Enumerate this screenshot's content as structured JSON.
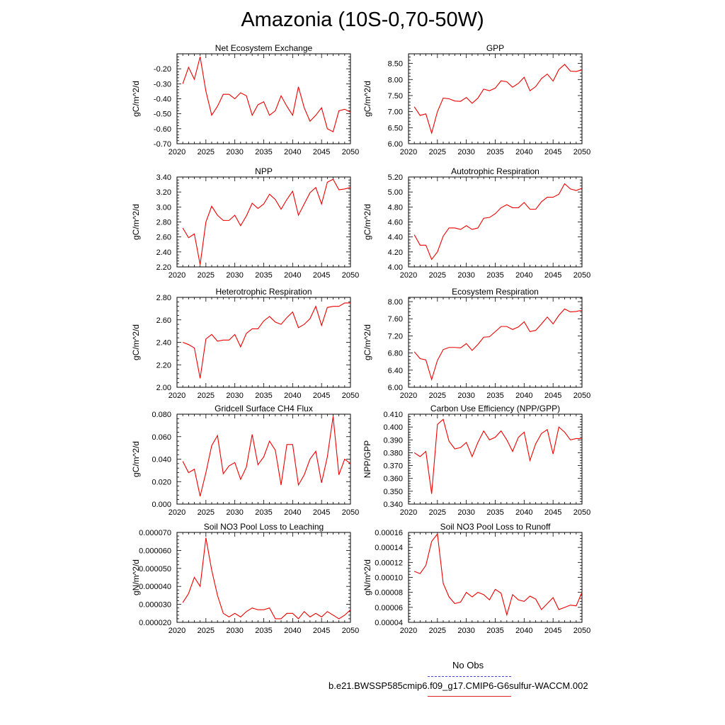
{
  "page_title": "Amazonia (10S-0,70-50W)",
  "legend": {
    "entries": [
      {
        "label": "No Obs",
        "color": "#4444dd",
        "style": "dashed"
      },
      {
        "label": "b.e21.BWSSP585cmip6.f09_g17.CMIP6-G6sulfur-WACCM.002",
        "color": "#dd2222",
        "style": "solid"
      }
    ]
  },
  "chart_data": [
    {
      "type": "line",
      "title": "Net Ecosystem Exchange",
      "ylabel": "gC/m^2/d",
      "xlim": [
        2020,
        2050
      ],
      "ylim": [
        -0.7,
        -0.1
      ],
      "xticks": [
        "2020",
        "2025",
        "2030",
        "2035",
        "2040",
        "2045",
        "2050"
      ],
      "yticks": [
        "-0.70",
        "-0.60",
        "-0.50",
        "-0.40",
        "-0.30",
        "-0.20"
      ],
      "ytick_values": [
        -0.7,
        -0.6,
        -0.5,
        -0.4,
        -0.3,
        -0.2
      ],
      "x": [
        2021,
        2022,
        2023,
        2024,
        2025,
        2026,
        2027,
        2028,
        2029,
        2030,
        2031,
        2032,
        2033,
        2034,
        2035,
        2036,
        2037,
        2038,
        2039,
        2040,
        2041,
        2042,
        2043,
        2044,
        2045,
        2046,
        2047,
        2048,
        2049,
        2050
      ],
      "series": [
        {
          "color": "#ee0000",
          "values": [
            -0.3,
            -0.19,
            -0.27,
            -0.12,
            -0.35,
            -0.51,
            -0.45,
            -0.37,
            -0.37,
            -0.4,
            -0.36,
            -0.38,
            -0.51,
            -0.44,
            -0.42,
            -0.51,
            -0.48,
            -0.38,
            -0.45,
            -0.51,
            -0.32,
            -0.46,
            -0.55,
            -0.51,
            -0.46,
            -0.6,
            -0.62,
            -0.48,
            -0.47,
            -0.49
          ]
        }
      ]
    },
    {
      "type": "line",
      "title": "GPP",
      "ylabel": "gC/m^2/d",
      "xlim": [
        2020,
        2050
      ],
      "ylim": [
        6.0,
        8.8
      ],
      "xticks": [
        "2020",
        "2025",
        "2030",
        "2035",
        "2040",
        "2045",
        "2050"
      ],
      "yticks": [
        "6.00",
        "6.50",
        "7.00",
        "7.50",
        "8.00",
        "8.50"
      ],
      "ytick_values": [
        6.0,
        6.5,
        7.0,
        7.5,
        8.0,
        8.5
      ],
      "x": [
        2021,
        2022,
        2023,
        2024,
        2025,
        2026,
        2027,
        2028,
        2029,
        2030,
        2031,
        2032,
        2033,
        2034,
        2035,
        2036,
        2037,
        2038,
        2039,
        2040,
        2041,
        2042,
        2043,
        2044,
        2045,
        2046,
        2047,
        2048,
        2049,
        2050
      ],
      "series": [
        {
          "color": "#ee0000",
          "values": [
            7.15,
            6.88,
            6.93,
            6.33,
            7.0,
            7.42,
            7.4,
            7.33,
            7.32,
            7.44,
            7.26,
            7.42,
            7.7,
            7.65,
            7.73,
            7.96,
            7.93,
            7.76,
            7.88,
            8.07,
            7.65,
            7.78,
            8.03,
            8.17,
            7.95,
            8.31,
            8.47,
            8.26,
            8.25,
            8.3
          ]
        }
      ]
    },
    {
      "type": "line",
      "title": "NPP",
      "ylabel": "gC/m^2/d",
      "xlim": [
        2020,
        2050
      ],
      "ylim": [
        2.2,
        3.4
      ],
      "xticks": [
        "2020",
        "2025",
        "2030",
        "2035",
        "2040",
        "2045",
        "2050"
      ],
      "yticks": [
        "2.20",
        "2.40",
        "2.60",
        "2.80",
        "3.00",
        "3.20",
        "3.40"
      ],
      "ytick_values": [
        2.2,
        2.4,
        2.6,
        2.8,
        3.0,
        3.2,
        3.4
      ],
      "x": [
        2021,
        2022,
        2023,
        2024,
        2025,
        2026,
        2027,
        2028,
        2029,
        2030,
        2031,
        2032,
        2033,
        2034,
        2035,
        2036,
        2037,
        2038,
        2039,
        2040,
        2041,
        2042,
        2043,
        2044,
        2045,
        2046,
        2047,
        2048,
        2049,
        2050
      ],
      "series": [
        {
          "color": "#ee0000",
          "values": [
            2.72,
            2.59,
            2.64,
            2.23,
            2.8,
            3.01,
            2.89,
            2.82,
            2.82,
            2.89,
            2.75,
            2.88,
            3.05,
            2.98,
            3.04,
            3.17,
            3.1,
            2.97,
            3.1,
            3.21,
            2.89,
            3.04,
            3.19,
            3.26,
            3.04,
            3.33,
            3.37,
            3.23,
            3.24,
            3.26
          ]
        }
      ]
    },
    {
      "type": "line",
      "title": "Autotrophic Respiration",
      "ylabel": "gC/m^2/d",
      "xlim": [
        2020,
        2050
      ],
      "ylim": [
        4.0,
        5.2
      ],
      "xticks": [
        "2020",
        "2025",
        "2030",
        "2035",
        "2040",
        "2045",
        "2050"
      ],
      "yticks": [
        "4.00",
        "4.20",
        "4.40",
        "4.60",
        "4.80",
        "5.00",
        "5.20"
      ],
      "ytick_values": [
        4.0,
        4.2,
        4.4,
        4.6,
        4.8,
        5.0,
        5.2
      ],
      "x": [
        2021,
        2022,
        2023,
        2024,
        2025,
        2026,
        2027,
        2028,
        2029,
        2030,
        2031,
        2032,
        2033,
        2034,
        2035,
        2036,
        2037,
        2038,
        2039,
        2040,
        2041,
        2042,
        2043,
        2044,
        2045,
        2046,
        2047,
        2048,
        2049,
        2050
      ],
      "series": [
        {
          "color": "#ee0000",
          "values": [
            4.43,
            4.29,
            4.29,
            4.1,
            4.2,
            4.41,
            4.52,
            4.52,
            4.5,
            4.55,
            4.5,
            4.52,
            4.65,
            4.66,
            4.71,
            4.79,
            4.83,
            4.79,
            4.79,
            4.86,
            4.77,
            4.77,
            4.87,
            4.93,
            4.93,
            4.97,
            5.11,
            5.04,
            5.02,
            5.05
          ]
        }
      ]
    },
    {
      "type": "line",
      "title": "Heterotrophic Respiration",
      "ylabel": "gC/m^2/d",
      "xlim": [
        2020,
        2050
      ],
      "ylim": [
        2.0,
        2.8
      ],
      "xticks": [
        "2020",
        "2025",
        "2030",
        "2035",
        "2040",
        "2045",
        "2050"
      ],
      "yticks": [
        "2.00",
        "2.20",
        "2.40",
        "2.60",
        "2.80"
      ],
      "ytick_values": [
        2.0,
        2.2,
        2.4,
        2.6,
        2.8
      ],
      "x": [
        2021,
        2022,
        2023,
        2024,
        2025,
        2026,
        2027,
        2028,
        2029,
        2030,
        2031,
        2032,
        2033,
        2034,
        2035,
        2036,
        2037,
        2038,
        2039,
        2040,
        2041,
        2042,
        2043,
        2044,
        2045,
        2046,
        2047,
        2048,
        2049,
        2050
      ],
      "series": [
        {
          "color": "#ee0000",
          "values": [
            2.4,
            2.38,
            2.35,
            2.08,
            2.43,
            2.47,
            2.41,
            2.42,
            2.42,
            2.47,
            2.36,
            2.48,
            2.52,
            2.52,
            2.59,
            2.63,
            2.58,
            2.56,
            2.62,
            2.67,
            2.53,
            2.56,
            2.61,
            2.72,
            2.55,
            2.71,
            2.72,
            2.72,
            2.75,
            2.75
          ]
        }
      ]
    },
    {
      "type": "line",
      "title": "Ecosystem Respiration",
      "ylabel": "gC/m^2/d",
      "xlim": [
        2020,
        2050
      ],
      "ylim": [
        6.0,
        8.1
      ],
      "xticks": [
        "2020",
        "2025",
        "2030",
        "2035",
        "2040",
        "2045",
        "2050"
      ],
      "yticks": [
        "6.00",
        "6.40",
        "6.80",
        "7.20",
        "7.60",
        "8.00"
      ],
      "ytick_values": [
        6.0,
        6.4,
        6.8,
        7.2,
        7.6,
        8.0
      ],
      "x": [
        2021,
        2022,
        2023,
        2024,
        2025,
        2026,
        2027,
        2028,
        2029,
        2030,
        2031,
        2032,
        2033,
        2034,
        2035,
        2036,
        2037,
        2038,
        2039,
        2040,
        2041,
        2042,
        2043,
        2044,
        2045,
        2046,
        2047,
        2048,
        2049,
        2050
      ],
      "series": [
        {
          "color": "#ee0000",
          "values": [
            6.83,
            6.67,
            6.64,
            6.18,
            6.63,
            6.88,
            6.93,
            6.93,
            6.92,
            7.02,
            6.86,
            7.0,
            7.17,
            7.18,
            7.3,
            7.42,
            7.42,
            7.35,
            7.41,
            7.53,
            7.3,
            7.33,
            7.48,
            7.64,
            7.48,
            7.68,
            7.83,
            7.76,
            7.77,
            7.8
          ]
        }
      ]
    },
    {
      "type": "line",
      "title": "Gridcell Surface CH4 Flux",
      "ylabel": "gC/m^2/d",
      "xlim": [
        2020,
        2050
      ],
      "ylim": [
        0.0,
        0.08
      ],
      "xticks": [
        "2020",
        "2025",
        "2030",
        "2035",
        "2040",
        "2045",
        "2050"
      ],
      "yticks": [
        "0.000",
        "0.020",
        "0.040",
        "0.060",
        "0.080"
      ],
      "ytick_values": [
        0.0,
        0.02,
        0.04,
        0.06,
        0.08
      ],
      "x": [
        2021,
        2022,
        2023,
        2024,
        2025,
        2026,
        2027,
        2028,
        2029,
        2030,
        2031,
        2032,
        2033,
        2034,
        2035,
        2036,
        2037,
        2038,
        2039,
        2040,
        2041,
        2042,
        2043,
        2044,
        2045,
        2046,
        2047,
        2048,
        2049,
        2050
      ],
      "series": [
        {
          "color": "#ee0000",
          "values": [
            0.038,
            0.028,
            0.031,
            0.007,
            0.028,
            0.052,
            0.061,
            0.027,
            0.034,
            0.037,
            0.022,
            0.033,
            0.062,
            0.035,
            0.042,
            0.056,
            0.048,
            0.017,
            0.053,
            0.053,
            0.017,
            0.026,
            0.04,
            0.047,
            0.019,
            0.042,
            0.078,
            0.026,
            0.04,
            0.036
          ]
        }
      ]
    },
    {
      "type": "line",
      "title": "Carbon Use Efficiency (NPP/GPP)",
      "ylabel": "NPP/GPP",
      "xlim": [
        2020,
        2050
      ],
      "ylim": [
        0.34,
        0.41
      ],
      "xticks": [
        "2020",
        "2025",
        "2030",
        "2035",
        "2040",
        "2045",
        "2050"
      ],
      "yticks": [
        "0.340",
        "0.350",
        "0.360",
        "0.370",
        "0.380",
        "0.390",
        "0.400",
        "0.410"
      ],
      "ytick_values": [
        0.34,
        0.35,
        0.36,
        0.37,
        0.38,
        0.39,
        0.4,
        0.41
      ],
      "x": [
        2021,
        2022,
        2023,
        2024,
        2025,
        2026,
        2027,
        2028,
        2029,
        2030,
        2031,
        2032,
        2033,
        2034,
        2035,
        2036,
        2037,
        2038,
        2039,
        2040,
        2041,
        2042,
        2043,
        2044,
        2045,
        2046,
        2047,
        2048,
        2049,
        2050
      ],
      "series": [
        {
          "color": "#ee0000",
          "values": [
            0.38,
            0.377,
            0.381,
            0.348,
            0.402,
            0.406,
            0.389,
            0.383,
            0.384,
            0.388,
            0.377,
            0.388,
            0.397,
            0.39,
            0.392,
            0.397,
            0.39,
            0.381,
            0.392,
            0.396,
            0.374,
            0.387,
            0.395,
            0.398,
            0.379,
            0.4,
            0.396,
            0.39,
            0.391,
            0.391
          ]
        }
      ]
    },
    {
      "type": "line",
      "title": "Soil NO3 Pool Loss to Leaching",
      "ylabel": "gN/m^2/d",
      "xlim": [
        2020,
        2050
      ],
      "ylim": [
        2e-05,
        7e-05
      ],
      "xticks": [
        "2020",
        "2025",
        "2030",
        "2035",
        "2040",
        "2045",
        "2050"
      ],
      "yticks": [
        "0.000020",
        "0.000030",
        "0.000040",
        "0.000050",
        "0.000060",
        "0.000070"
      ],
      "ytick_values": [
        2e-05,
        3e-05,
        4e-05,
        5e-05,
        6e-05,
        7e-05
      ],
      "x": [
        2021,
        2022,
        2023,
        2024,
        2025,
        2026,
        2027,
        2028,
        2029,
        2030,
        2031,
        2032,
        2033,
        2034,
        2035,
        2036,
        2037,
        2038,
        2039,
        2040,
        2041,
        2042,
        2043,
        2044,
        2045,
        2046,
        2047,
        2048,
        2049,
        2050
      ],
      "series": [
        {
          "color": "#ee0000",
          "values": [
            3.1e-05,
            3.6e-05,
            4.5e-05,
            4e-05,
            6.7e-05,
            4.9e-05,
            3.5e-05,
            2.5e-05,
            2.3e-05,
            2.5e-05,
            2.3e-05,
            2.6e-05,
            2.8e-05,
            2.7e-05,
            2.7e-05,
            2.8e-05,
            2.2e-05,
            2.2e-05,
            2.5e-05,
            2.5e-05,
            2.2e-05,
            2.6e-05,
            2.3e-05,
            2.5e-05,
            2.3e-05,
            2.6e-05,
            2.4e-05,
            2.2e-05,
            2.4e-05,
            2.7e-05
          ]
        }
      ]
    },
    {
      "type": "line",
      "title": "Soil NO3 Pool Loss to Runoff",
      "ylabel": "gN/m^2/d",
      "xlim": [
        2020,
        2050
      ],
      "ylim": [
        4e-05,
        0.00016
      ],
      "xticks": [
        "2020",
        "2025",
        "2030",
        "2035",
        "2040",
        "2045",
        "2050"
      ],
      "yticks": [
        "0.00004",
        "0.00006",
        "0.00008",
        "0.00010",
        "0.00012",
        "0.00014",
        "0.00016"
      ],
      "ytick_values": [
        4e-05,
        6e-05,
        8e-05,
        0.0001,
        0.00012,
        0.00014,
        0.00016
      ],
      "x": [
        2021,
        2022,
        2023,
        2024,
        2025,
        2026,
        2027,
        2028,
        2029,
        2030,
        2031,
        2032,
        2033,
        2034,
        2035,
        2036,
        2037,
        2038,
        2039,
        2040,
        2041,
        2042,
        2043,
        2044,
        2045,
        2046,
        2047,
        2048,
        2049,
        2050
      ],
      "series": [
        {
          "color": "#ee0000",
          "values": [
            0.000108,
            0.000105,
            0.000116,
            0.000148,
            0.000158,
            9.2e-05,
            7.4e-05,
            6.5e-05,
            6.7e-05,
            8e-05,
            7.4e-05,
            8e-05,
            7.7e-05,
            7e-05,
            8.4e-05,
            7.9e-05,
            5e-05,
            7.7e-05,
            7e-05,
            6.8e-05,
            7.5e-05,
            7.1e-05,
            5.7e-05,
            6.5e-05,
            7.3e-05,
            5.7e-05,
            6e-05,
            6.3e-05,
            6.2e-05,
            8e-05
          ]
        }
      ]
    }
  ]
}
